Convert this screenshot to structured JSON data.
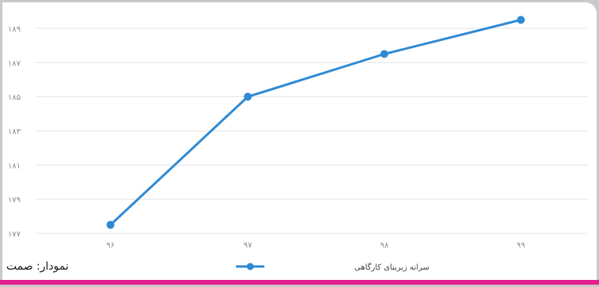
{
  "source_label": "نمودار: صمت",
  "colors": {
    "series": "#2f8ad4",
    "highlight_bar": "#e31f8f",
    "frame": "#c9c9c9",
    "grid": "#e4e4e4",
    "tick_text": "#8a8a8a"
  },
  "chart_data": {
    "type": "line",
    "categories": [
      "۹۶",
      "۹۷",
      "۹۸",
      "۹۹"
    ],
    "series": [
      {
        "name": "سرانه زیربنای کارگاهی",
        "values": [
          177.5,
          185.0,
          187.5,
          189.5
        ]
      }
    ],
    "yticks": [
      "۱۷۷",
      "۱۷۹",
      "۱۸۱",
      "۱۸۳",
      "۱۸۵",
      "۱۸۷",
      "۱۸۹"
    ],
    "ylim": [
      177,
      189
    ],
    "grid": true,
    "legend_position": "bottom"
  }
}
